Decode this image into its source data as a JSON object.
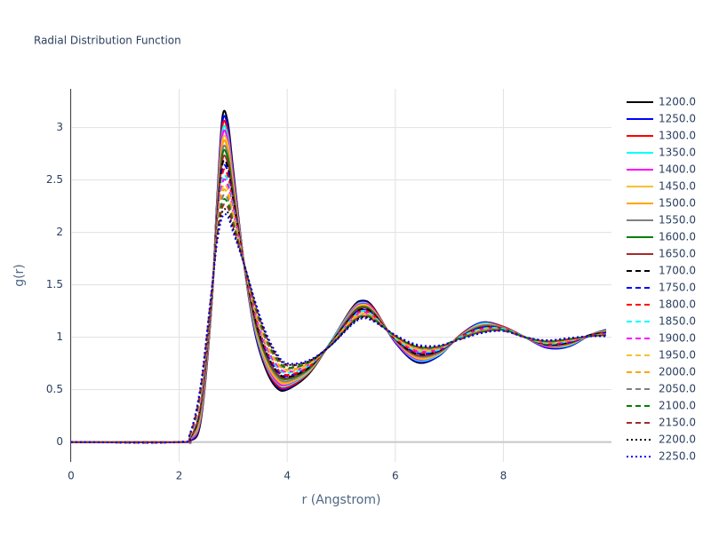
{
  "chart_data": {
    "type": "line",
    "title": "Radial Distribution Function",
    "x_label": "r (Angstrom)",
    "y_label": "g(r)",
    "x": [
      0,
      2,
      2.2,
      2.4,
      2.6,
      2.7,
      2.8,
      2.9,
      3.0,
      3.2,
      3.4,
      3.6,
      3.8,
      4.0,
      4.4,
      4.8,
      5.2,
      5.4,
      5.6,
      6.0,
      6.4,
      6.8,
      7.2,
      7.6,
      8.0,
      8.4,
      8.8,
      9.2,
      9.6,
      9.9
    ],
    "xlim": [
      0,
      10
    ],
    "xticks": [
      0,
      2,
      4,
      6,
      8
    ],
    "ylim": [
      -0.19,
      3.37
    ],
    "yticks": [
      0,
      0.5,
      1,
      1.5,
      2,
      2.5,
      3
    ],
    "grid": true,
    "series": [
      {
        "name": "1200.0",
        "color": "#000000",
        "dash": "solid",
        "values": [
          0,
          0,
          0.01,
          0.2,
          1.3,
          2.3,
          3.1,
          3.05,
          2.6,
          1.7,
          1.05,
          0.7,
          0.52,
          0.5,
          0.65,
          0.95,
          1.28,
          1.35,
          1.28,
          0.95,
          0.76,
          0.82,
          1.02,
          1.14,
          1.1,
          1.0,
          0.9,
          0.91,
          1.02,
          1.07
        ]
      },
      {
        "name": "1250.0",
        "color": "#0000ff",
        "dash": "solid",
        "values": [
          0,
          0,
          0.01,
          0.22,
          1.31,
          2.28,
          3.05,
          3.01,
          2.57,
          1.7,
          1.06,
          0.72,
          0.54,
          0.51,
          0.66,
          0.95,
          1.27,
          1.34,
          1.27,
          0.95,
          0.77,
          0.82,
          1.02,
          1.14,
          1.1,
          1.0,
          0.9,
          0.91,
          1.02,
          1.07
        ]
      },
      {
        "name": "1300.0",
        "color": "#ff0000",
        "dash": "solid",
        "values": [
          0,
          0,
          0.02,
          0.23,
          1.31,
          2.26,
          3.01,
          2.96,
          2.54,
          1.7,
          1.08,
          0.73,
          0.55,
          0.52,
          0.66,
          0.95,
          1.27,
          1.33,
          1.27,
          0.96,
          0.78,
          0.83,
          1.02,
          1.13,
          1.1,
          1.0,
          0.91,
          0.92,
          1.02,
          1.06
        ]
      },
      {
        "name": "1350.0",
        "color": "#00ffff",
        "dash": "solid",
        "values": [
          0,
          0,
          0.02,
          0.25,
          1.32,
          2.24,
          2.96,
          2.92,
          2.51,
          1.7,
          1.09,
          0.75,
          0.57,
          0.54,
          0.67,
          0.95,
          1.26,
          1.33,
          1.26,
          0.96,
          0.78,
          0.83,
          1.01,
          1.13,
          1.09,
          1.0,
          0.91,
          0.92,
          1.02,
          1.06
        ]
      },
      {
        "name": "1400.0",
        "color": "#ff00ff",
        "dash": "solid",
        "values": [
          0,
          0,
          0.02,
          0.27,
          1.33,
          2.22,
          2.92,
          2.88,
          2.49,
          1.7,
          1.11,
          0.77,
          0.58,
          0.55,
          0.68,
          0.94,
          1.25,
          1.32,
          1.26,
          0.96,
          0.79,
          0.84,
          1.01,
          1.12,
          1.09,
          1.0,
          0.91,
          0.93,
          1.02,
          1.06
        ]
      },
      {
        "name": "1450.0",
        "color": "#f5c033",
        "dash": "solid",
        "values": [
          0,
          0,
          0.03,
          0.28,
          1.34,
          2.2,
          2.87,
          2.84,
          2.46,
          1.7,
          1.12,
          0.78,
          0.6,
          0.56,
          0.68,
          0.94,
          1.24,
          1.31,
          1.25,
          0.97,
          0.8,
          0.84,
          1.01,
          1.12,
          1.09,
          1.0,
          0.92,
          0.93,
          1.02,
          1.06
        ]
      },
      {
        "name": "1500.0",
        "color": "#ffa500",
        "dash": "solid",
        "values": [
          0,
          0,
          0.03,
          0.3,
          1.34,
          2.19,
          2.83,
          2.79,
          2.43,
          1.7,
          1.14,
          0.8,
          0.61,
          0.57,
          0.69,
          0.94,
          1.23,
          1.3,
          1.24,
          0.97,
          0.81,
          0.85,
          1.01,
          1.11,
          1.09,
          1.0,
          0.92,
          0.93,
          1.02,
          1.05
        ]
      },
      {
        "name": "1550.0",
        "color": "#808080",
        "dash": "solid",
        "values": [
          0,
          0,
          0.03,
          0.32,
          1.35,
          2.17,
          2.78,
          2.75,
          2.4,
          1.7,
          1.15,
          0.82,
          0.63,
          0.58,
          0.69,
          0.94,
          1.23,
          1.29,
          1.24,
          0.97,
          0.82,
          0.85,
          1.01,
          1.11,
          1.09,
          1.0,
          0.92,
          0.94,
          1.02,
          1.05
        ]
      },
      {
        "name": "1600.0",
        "color": "#008000",
        "dash": "solid",
        "values": [
          0,
          0,
          0.04,
          0.33,
          1.36,
          2.15,
          2.74,
          2.71,
          2.37,
          1.7,
          1.16,
          0.83,
          0.65,
          0.6,
          0.7,
          0.94,
          1.22,
          1.29,
          1.23,
          0.98,
          0.83,
          0.86,
          1.0,
          1.1,
          1.08,
          1.0,
          0.93,
          0.94,
          1.02,
          1.05
        ]
      },
      {
        "name": "1650.0",
        "color": "#a52a2a",
        "dash": "solid",
        "values": [
          0,
          0,
          0.04,
          0.35,
          1.36,
          2.13,
          2.69,
          2.66,
          2.34,
          1.7,
          1.18,
          0.85,
          0.66,
          0.61,
          0.71,
          0.94,
          1.21,
          1.28,
          1.22,
          0.98,
          0.83,
          0.86,
          1.0,
          1.1,
          1.08,
          1.0,
          0.93,
          0.94,
          1.02,
          1.04
        ]
      },
      {
        "name": "1700.0",
        "color": "#000000",
        "dash": "dash",
        "values": [
          0,
          0,
          0.04,
          0.37,
          1.37,
          2.11,
          2.65,
          2.62,
          2.31,
          1.7,
          1.19,
          0.87,
          0.68,
          0.62,
          0.71,
          0.94,
          1.2,
          1.27,
          1.22,
          0.98,
          0.84,
          0.87,
          1.0,
          1.09,
          1.08,
          1.0,
          0.93,
          0.95,
          1.02,
          1.04
        ]
      },
      {
        "name": "1750.0",
        "color": "#0000ff",
        "dash": "dash",
        "values": [
          0,
          0,
          0.05,
          0.38,
          1.38,
          2.09,
          2.6,
          2.58,
          2.29,
          1.7,
          1.21,
          0.88,
          0.69,
          0.63,
          0.72,
          0.93,
          1.2,
          1.26,
          1.21,
          0.99,
          0.85,
          0.87,
          1.0,
          1.09,
          1.08,
          1.0,
          0.94,
          0.95,
          1.01,
          1.04
        ]
      },
      {
        "name": "1800.0",
        "color": "#ff0000",
        "dash": "dash",
        "values": [
          0,
          0,
          0.05,
          0.4,
          1.39,
          2.07,
          2.56,
          2.54,
          2.26,
          1.7,
          1.22,
          0.9,
          0.71,
          0.64,
          0.72,
          0.93,
          1.19,
          1.25,
          1.21,
          0.99,
          0.86,
          0.88,
          1.0,
          1.08,
          1.08,
          1.0,
          0.94,
          0.96,
          1.01,
          1.04
        ]
      },
      {
        "name": "1850.0",
        "color": "#00ffff",
        "dash": "dash",
        "values": [
          0,
          0,
          0.05,
          0.42,
          1.39,
          2.05,
          2.51,
          2.49,
          2.23,
          1.7,
          1.24,
          0.92,
          0.72,
          0.66,
          0.73,
          0.93,
          1.18,
          1.25,
          1.2,
          0.99,
          0.87,
          0.88,
          1.0,
          1.08,
          1.08,
          1.0,
          0.94,
          0.96,
          1.01,
          1.03
        ]
      },
      {
        "name": "1900.0",
        "color": "#ff00ff",
        "dash": "dash",
        "values": [
          0,
          0,
          0.06,
          0.43,
          1.4,
          2.03,
          2.47,
          2.45,
          2.2,
          1.7,
          1.25,
          0.93,
          0.74,
          0.67,
          0.74,
          0.93,
          1.17,
          1.24,
          1.19,
          1.0,
          0.87,
          0.89,
          0.99,
          1.07,
          1.07,
          1.0,
          0.95,
          0.96,
          1.01,
          1.03
        ]
      },
      {
        "name": "1950.0",
        "color": "#f5c033",
        "dash": "dash",
        "values": [
          0,
          0,
          0.06,
          0.45,
          1.41,
          2.01,
          2.42,
          2.41,
          2.17,
          1.7,
          1.26,
          0.95,
          0.76,
          0.68,
          0.74,
          0.93,
          1.17,
          1.23,
          1.19,
          1.0,
          0.88,
          0.89,
          0.99,
          1.07,
          1.07,
          1.0,
          0.95,
          0.97,
          1.01,
          1.03
        ]
      },
      {
        "name": "2000.0",
        "color": "#ffa500",
        "dash": "dash",
        "values": [
          0,
          0,
          0.06,
          0.47,
          1.41,
          2.0,
          2.38,
          2.36,
          2.14,
          1.7,
          1.28,
          0.97,
          0.77,
          0.69,
          0.75,
          0.93,
          1.16,
          1.22,
          1.18,
          1.0,
          0.89,
          0.9,
          0.99,
          1.06,
          1.07,
          1.0,
          0.95,
          0.97,
          1.01,
          1.02
        ]
      },
      {
        "name": "2050.0",
        "color": "#808080",
        "dash": "dash",
        "values": [
          0,
          0,
          0.07,
          0.48,
          1.42,
          1.98,
          2.33,
          2.32,
          2.11,
          1.7,
          1.29,
          0.98,
          0.79,
          0.7,
          0.76,
          0.93,
          1.15,
          1.21,
          1.18,
          1.01,
          0.9,
          0.9,
          0.99,
          1.06,
          1.07,
          1.0,
          0.96,
          0.98,
          1.01,
          1.02
        ]
      },
      {
        "name": "2100.0",
        "color": "#008000",
        "dash": "dash",
        "values": [
          0,
          0,
          0.07,
          0.5,
          1.43,
          1.96,
          2.29,
          2.28,
          2.09,
          1.7,
          1.31,
          1.0,
          0.8,
          0.71,
          0.76,
          0.92,
          1.14,
          1.2,
          1.17,
          1.01,
          0.91,
          0.91,
          0.99,
          1.05,
          1.07,
          1.0,
          0.96,
          0.98,
          1.01,
          1.02
        ]
      },
      {
        "name": "2150.0",
        "color": "#a52a2a",
        "dash": "dash",
        "values": [
          0,
          0,
          0.07,
          0.52,
          1.44,
          1.94,
          2.24,
          2.24,
          2.06,
          1.7,
          1.32,
          1.02,
          0.82,
          0.73,
          0.77,
          0.92,
          1.14,
          1.2,
          1.16,
          1.01,
          0.91,
          0.91,
          0.98,
          1.05,
          1.06,
          1.0,
          0.96,
          0.98,
          1.01,
          1.02
        ]
      },
      {
        "name": "2200.0",
        "color": "#000000",
        "dash": "dot",
        "values": [
          0,
          0,
          0.08,
          0.53,
          1.44,
          1.92,
          2.2,
          2.19,
          2.03,
          1.7,
          1.34,
          1.03,
          0.83,
          0.74,
          0.77,
          0.92,
          1.13,
          1.19,
          1.16,
          1.02,
          0.92,
          0.92,
          0.98,
          1.04,
          1.06,
          1.0,
          0.97,
          0.99,
          1.01,
          1.01
        ]
      },
      {
        "name": "2250.0",
        "color": "#0000ff",
        "dash": "dot",
        "values": [
          0,
          0,
          0.08,
          0.55,
          1.45,
          1.9,
          2.15,
          2.15,
          2.0,
          1.7,
          1.35,
          1.05,
          0.85,
          0.75,
          0.78,
          0.92,
          1.12,
          1.18,
          1.15,
          1.02,
          0.93,
          0.92,
          0.98,
          1.04,
          1.06,
          1.0,
          0.97,
          0.99,
          1.01,
          1.01
        ]
      }
    ]
  }
}
